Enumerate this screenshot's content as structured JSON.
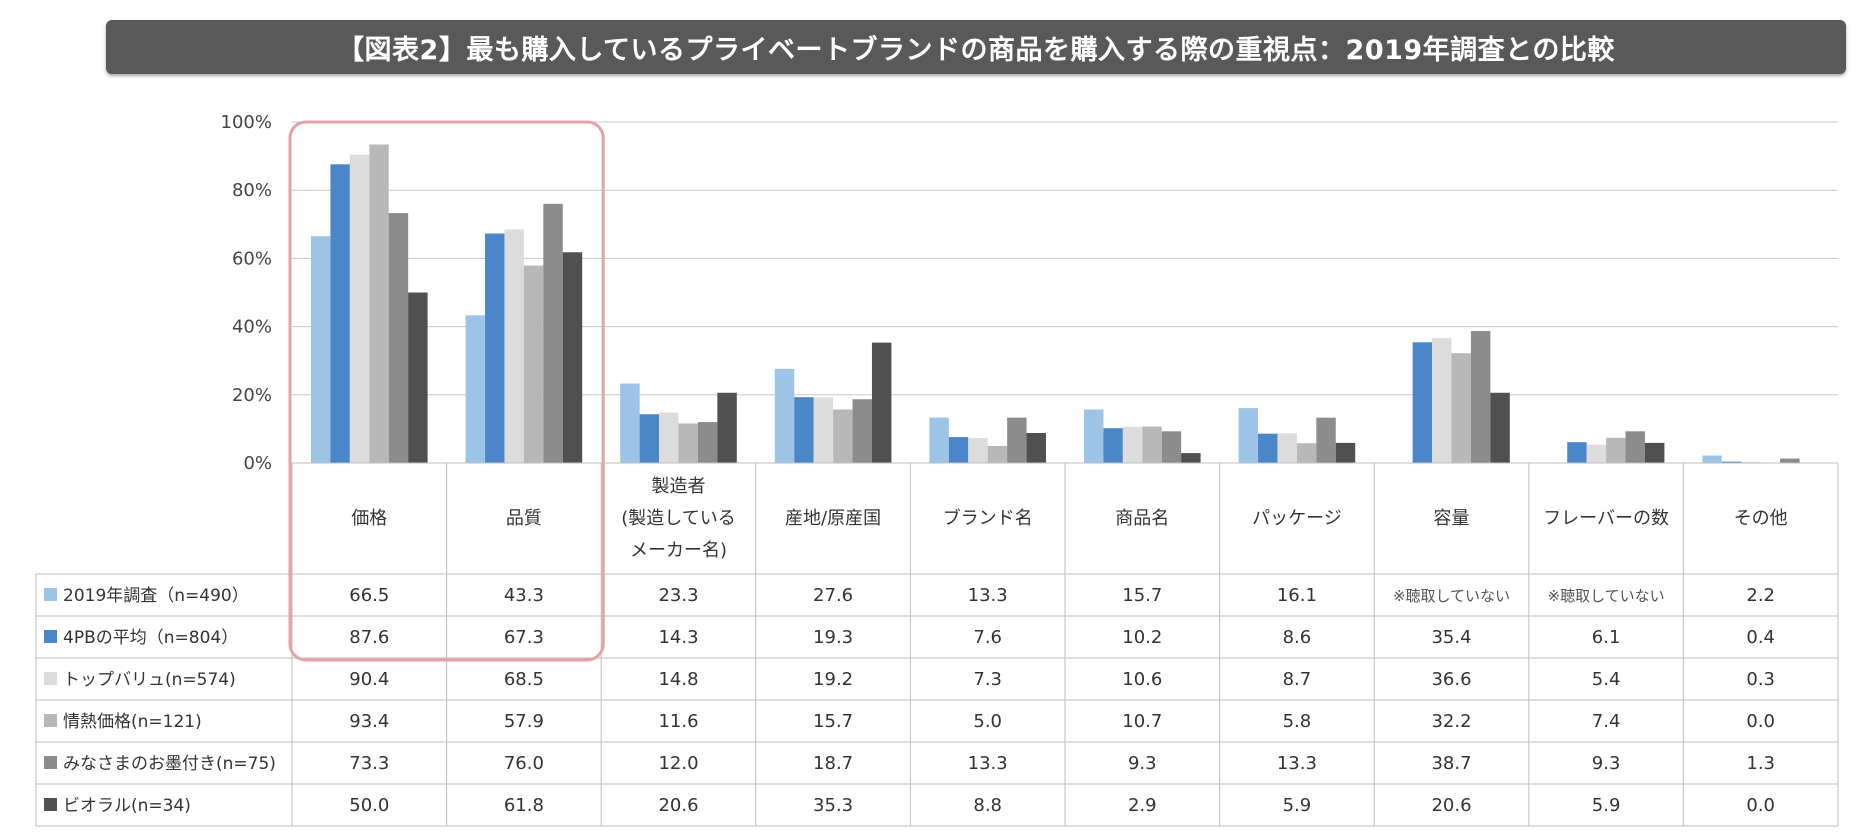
{
  "title": "【図表2】最も購入しているプライベートブランドの商品を購入する際の重視点：2019年調査との比較",
  "colors": {
    "title_bg": "#595959",
    "highlight_border": "#e8a0a8",
    "grid": "#c8c8c8",
    "table_border": "#bfbfbf"
  },
  "chart_data": {
    "type": "bar",
    "categories": [
      [
        "価格"
      ],
      [
        "品質"
      ],
      [
        "製造者",
        "(製造している",
        "メーカー名)"
      ],
      [
        "産地/原産国"
      ],
      [
        "ブランド名"
      ],
      [
        "商品名"
      ],
      [
        "パッケージ"
      ],
      [
        "容量"
      ],
      [
        "フレーバーの数"
      ],
      [
        "その他"
      ]
    ],
    "y_ticks": [
      "0%",
      "20%",
      "40%",
      "60%",
      "80%",
      "100%"
    ],
    "ylim": [
      0,
      100
    ],
    "grid": true,
    "highlighted_categories": [
      0,
      1
    ],
    "series": [
      {
        "name": "2019年調査（n=490）",
        "color": "#9dc3e6",
        "values": [
          66.5,
          43.3,
          23.3,
          27.6,
          13.3,
          15.7,
          16.1,
          null,
          null,
          2.2
        ],
        "labels": [
          "66.5",
          "43.3",
          "23.3",
          "27.6",
          "13.3",
          "15.7",
          "16.1",
          "※聴取していない",
          "※聴取していない",
          "2.2"
        ]
      },
      {
        "name": "4PBの平均（n=804）",
        "color": "#4a86c8",
        "values": [
          87.6,
          67.3,
          14.3,
          19.3,
          7.6,
          10.2,
          8.6,
          35.4,
          6.1,
          0.4
        ],
        "labels": [
          "87.6",
          "67.3",
          "14.3",
          "19.3",
          "7.6",
          "10.2",
          "8.6",
          "35.4",
          "6.1",
          "0.4"
        ]
      },
      {
        "name": "トップバリュ(n=574)",
        "color": "#dcdcdc",
        "values": [
          90.4,
          68.5,
          14.8,
          19.2,
          7.3,
          10.6,
          8.7,
          36.6,
          5.4,
          0.3
        ],
        "labels": [
          "90.4",
          "68.5",
          "14.8",
          "19.2",
          "7.3",
          "10.6",
          "8.7",
          "36.6",
          "5.4",
          "0.3"
        ]
      },
      {
        "name": "情熱価格(n=121)",
        "color": "#b8b8b8",
        "values": [
          93.4,
          57.9,
          11.6,
          15.7,
          5.0,
          10.7,
          5.8,
          32.2,
          7.4,
          0.0
        ],
        "labels": [
          "93.4",
          "57.9",
          "11.6",
          "15.7",
          "5.0",
          "10.7",
          "5.8",
          "32.2",
          "7.4",
          "0.0"
        ]
      },
      {
        "name": "みなさまのお墨付き(n=75)",
        "color": "#8c8c8c",
        "values": [
          73.3,
          76.0,
          12.0,
          18.7,
          13.3,
          9.3,
          13.3,
          38.7,
          9.3,
          1.3
        ],
        "labels": [
          "73.3",
          "76.0",
          "12.0",
          "18.7",
          "13.3",
          "9.3",
          "13.3",
          "38.7",
          "9.3",
          "1.3"
        ]
      },
      {
        "name": "ビオラル(n=34)",
        "color": "#505050",
        "values": [
          50.0,
          61.8,
          20.6,
          35.3,
          8.8,
          2.9,
          5.9,
          20.6,
          5.9,
          0.0
        ],
        "labels": [
          "50.0",
          "61.8",
          "20.6",
          "35.3",
          "8.8",
          "2.9",
          "5.9",
          "20.6",
          "5.9",
          "0.0"
        ]
      }
    ]
  }
}
